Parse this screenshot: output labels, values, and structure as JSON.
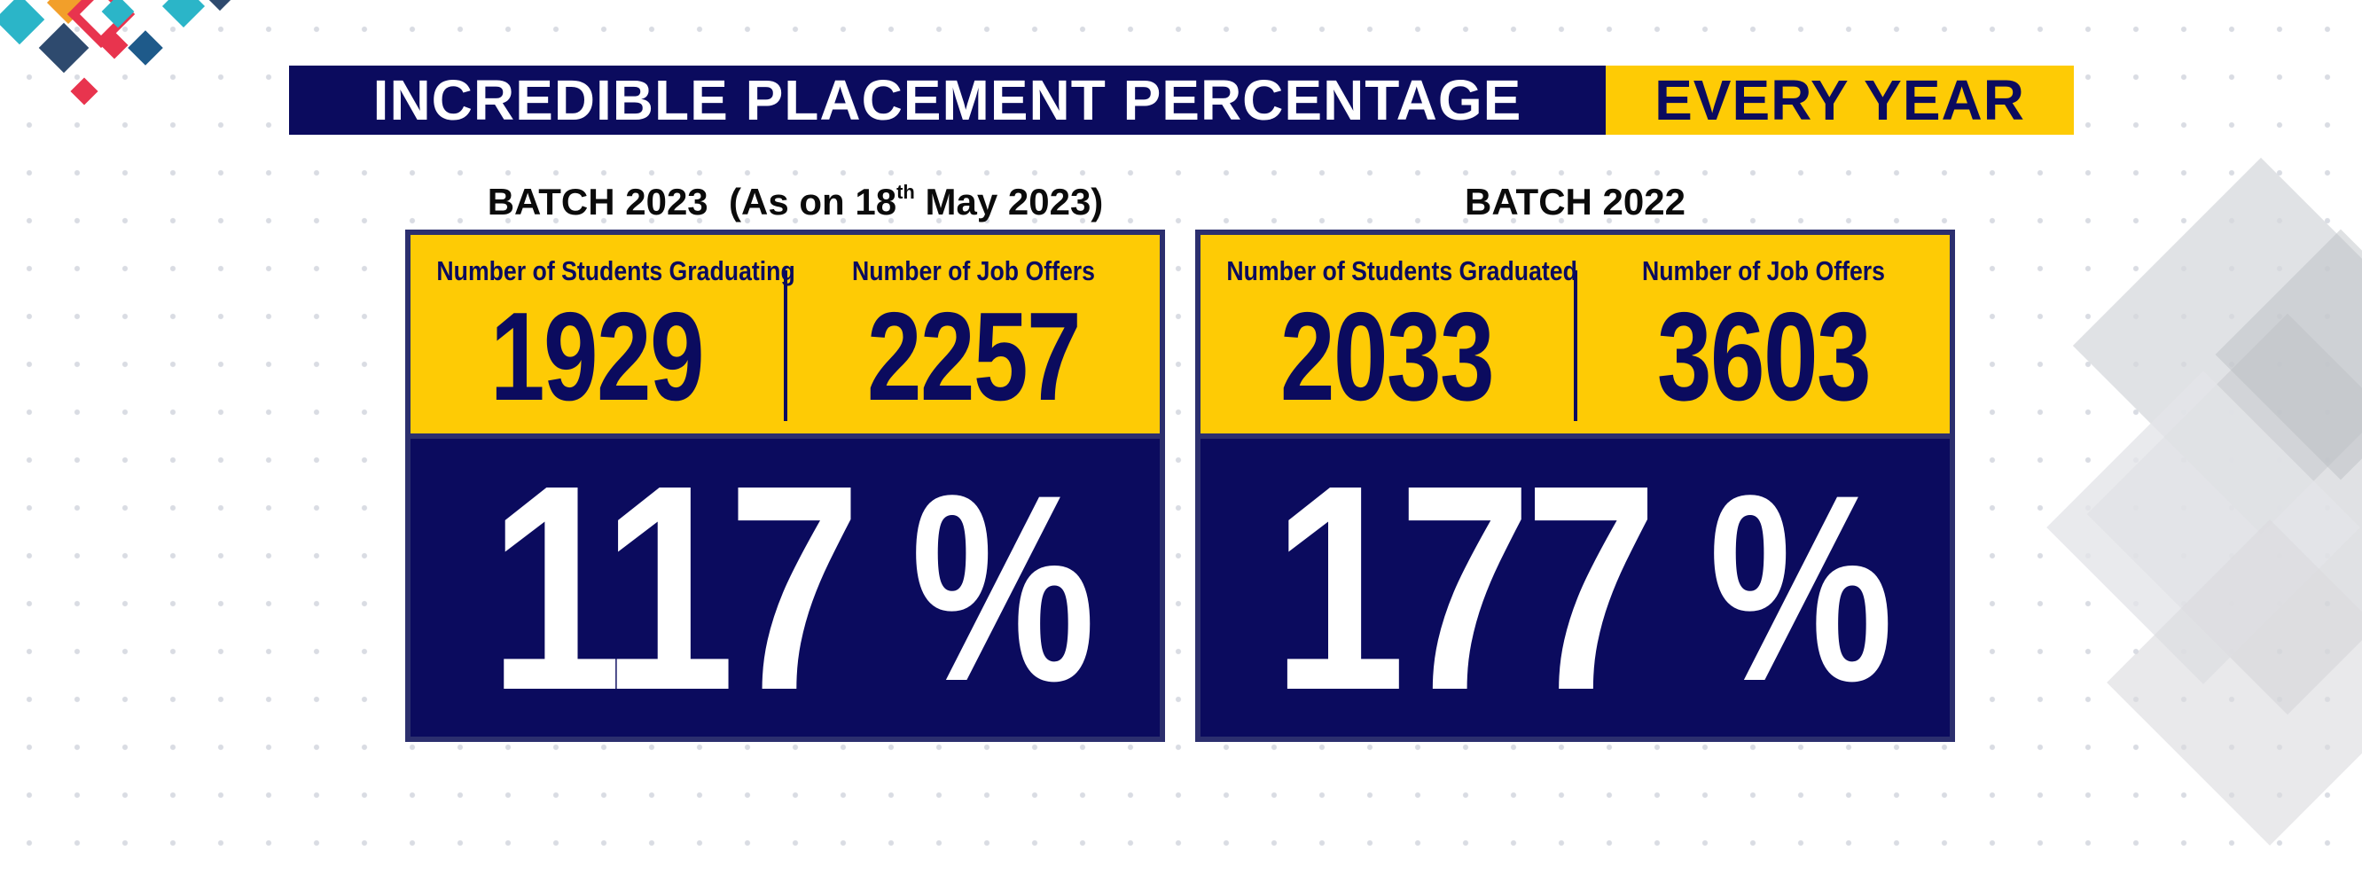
{
  "banner": {
    "title": "INCREDIBLE PLACEMENT PERCENTAGE",
    "highlight": "EVERY YEAR"
  },
  "batches": [
    {
      "heading": "BATCH 2023",
      "note_prefix": "(As on 18",
      "note_sup": "th",
      "note_suffix": " May 2023)",
      "left_label": "Number of Students Graduating",
      "left_value": "1929",
      "right_label": "Number of Job Offers",
      "right_value": "2257",
      "percentage": "117",
      "percent_sign": "%"
    },
    {
      "heading": "BATCH 2022",
      "left_label": "Number of Students Graduated",
      "left_value": "2033",
      "right_label": "Number of Job Offers",
      "right_value": "3603",
      "percentage": "177",
      "percent_sign": "%"
    }
  ],
  "colors": {
    "navy": "#0b0b5e",
    "yellow": "#fecb05",
    "border": "#2c2f6e"
  }
}
